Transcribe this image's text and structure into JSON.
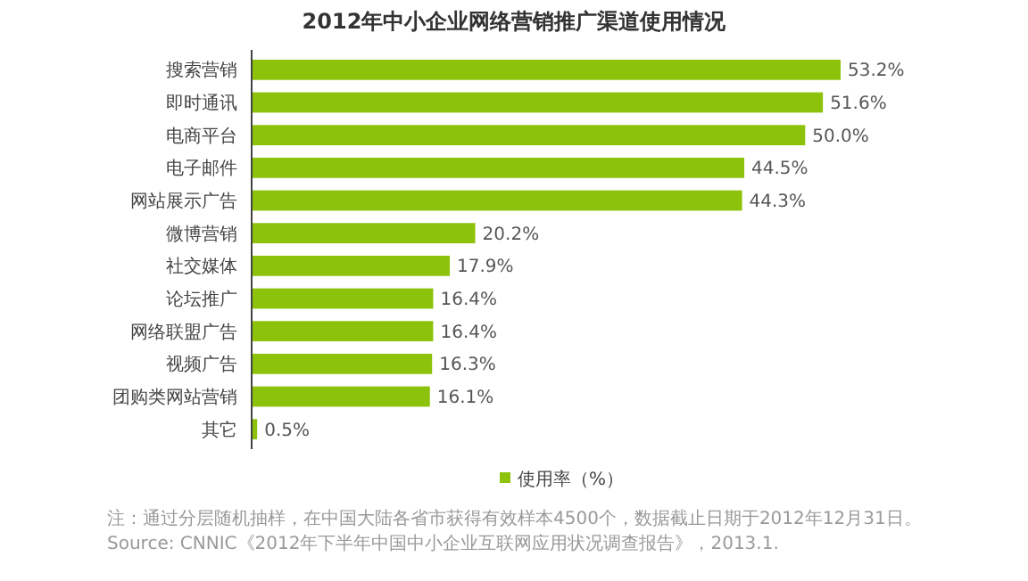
{
  "chart_data": {
    "type": "bar",
    "orientation": "horizontal",
    "title": "2012年中小企业网络营销推广渠道使用情况",
    "categories": [
      "搜索营销",
      "即时通讯",
      "电商平台",
      "电子邮件",
      "网站展示广告",
      "微博营销",
      "社交媒体",
      "论坛推广",
      "网络联盟广告",
      "视频广告",
      "团购类网站营销",
      "其它"
    ],
    "series": [
      {
        "name": "使用率（%）",
        "color": "#8cc20a",
        "values": [
          53.2,
          51.6,
          50.0,
          44.5,
          44.3,
          20.2,
          17.9,
          16.4,
          16.4,
          16.3,
          16.1,
          0.5
        ],
        "value_labels": [
          "53.2%",
          "51.6%",
          "50.0%",
          "44.5%",
          "44.3%",
          "20.2%",
          "17.9%",
          "16.4%",
          "16.4%",
          "16.3%",
          "16.1%",
          "0.5%"
        ]
      }
    ],
    "legend": "bottom",
    "annotations": [
      "注：通过分层随机抽样，在中国大陆各省市获得有效样本4500个，数据截止日期于2012年12月31日。",
      "Source: CNNIC《2012年下半年中国中小企业互联网应用状况调查报告》，2013.1."
    ]
  }
}
